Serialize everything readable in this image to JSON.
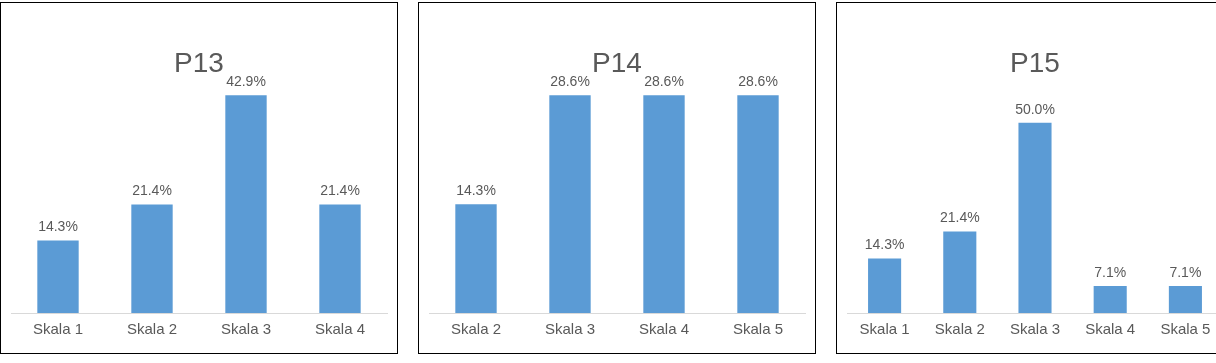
{
  "chart_data": [
    {
      "type": "bar",
      "title": "P13",
      "categories": [
        "Skala 1",
        "Skala 2",
        "Skala 3",
        "Skala 4"
      ],
      "values": [
        14.3,
        21.4,
        42.9,
        21.4
      ],
      "value_labels": [
        "14.3%",
        "21.4%",
        "42.9%",
        "21.4%"
      ],
      "color": "#5b9bd5",
      "grid": false,
      "legend": false
    },
    {
      "type": "bar",
      "title": "P14",
      "categories": [
        "Skala 2",
        "Skala 3",
        "Skala 4",
        "Skala 5"
      ],
      "values": [
        14.3,
        28.6,
        28.6,
        28.6
      ],
      "value_labels": [
        "14.3%",
        "28.6%",
        "28.6%",
        "28.6%"
      ],
      "color": "#5b9bd5",
      "grid": false,
      "legend": false
    },
    {
      "type": "bar",
      "title": "P15",
      "categories": [
        "Skala 1",
        "Skala 2",
        "Skala 3",
        "Skala 4",
        "Skala 5"
      ],
      "values": [
        14.3,
        21.4,
        50.0,
        7.1,
        7.1
      ],
      "value_labels": [
        "14.3%",
        "21.4%",
        "50.0%",
        "7.1%",
        "7.1%"
      ],
      "color": "#5b9bd5",
      "grid": false,
      "legend": false
    }
  ]
}
